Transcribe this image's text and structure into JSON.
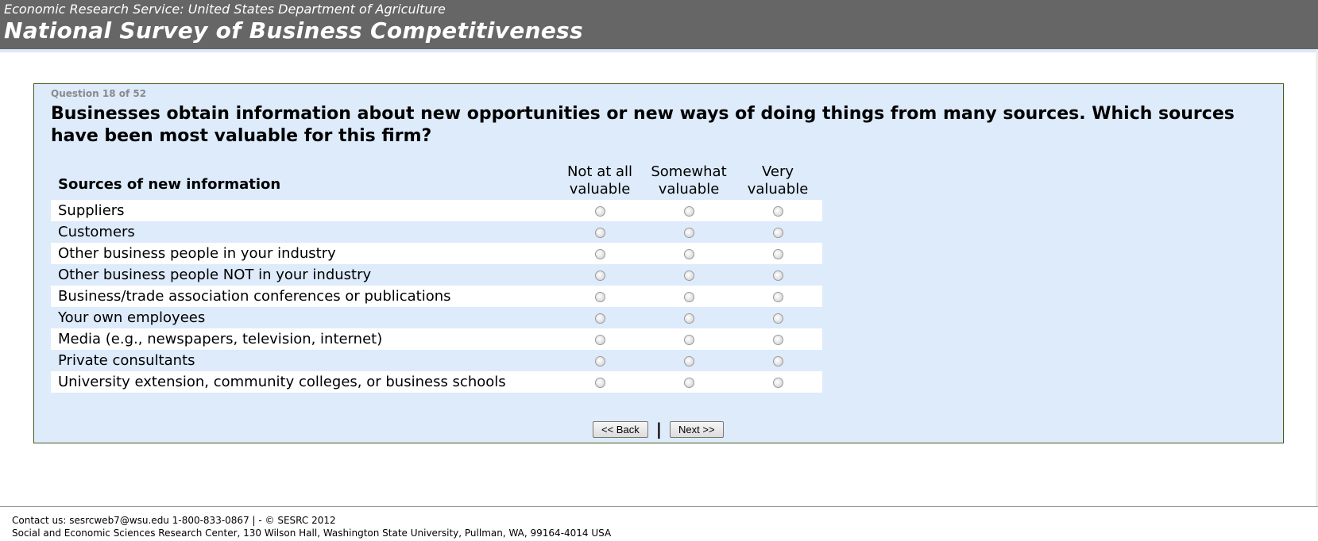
{
  "header": {
    "subtitle": "Economic Research Service: United States Department of Agriculture",
    "title": "National Survey of Business Competitiveness"
  },
  "question": {
    "number": "Question 18 of 52",
    "text": "Businesses obtain information about new opportunities or new ways of doing things from many sources. Which sources have been most valuable for this firm?",
    "row_header": "Sources of new information",
    "columns": [
      [
        "Not at all",
        "valuable"
      ],
      [
        "Somewhat",
        "valuable"
      ],
      [
        "Very",
        "valuable"
      ]
    ],
    "rows": [
      "Suppliers",
      "Customers",
      "Other business people in your industry",
      "Other business people NOT in your industry",
      "Business/trade association conferences or publications",
      "Your own employees",
      "Media (e.g., newspapers, television, internet)",
      "Private consultants",
      "University extension, community colleges, or business schools"
    ]
  },
  "nav": {
    "back": "<< Back",
    "separator": "|",
    "next": "Next >>"
  },
  "footer": {
    "line1": "Contact us: sesrcweb7@wsu.edu 1-800-833-0867 | - © SESRC 2012",
    "line2": "Social and Economic Sciences Research Center, 130 Wilson Hall, Washington State University, Pullman, WA, 99164-4014 USA"
  }
}
